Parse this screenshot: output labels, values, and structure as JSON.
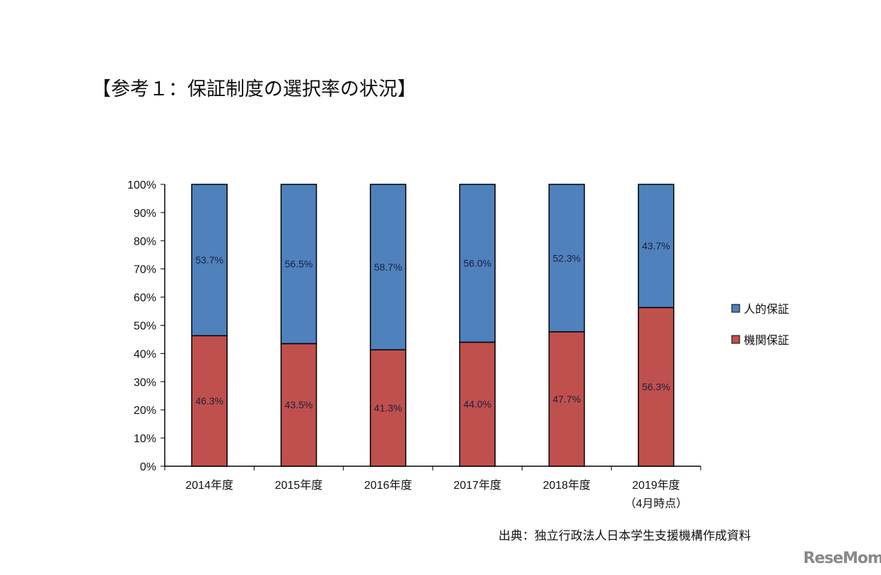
{
  "title": "【参考１：保証制度の選択率の状況】",
  "source": "出典：独立行政法人日本学生支援機構作成資料",
  "logo": "ReseMom",
  "chart_data": {
    "type": "bar",
    "stacked": true,
    "categories": [
      "2014年度",
      "2015年度",
      "2016年度",
      "2017年度",
      "2018年度",
      "2019年度"
    ],
    "category_sublabels": [
      "",
      "",
      "",
      "",
      "",
      "（4月時点）"
    ],
    "series": [
      {
        "name": "機関保証",
        "color": "#C0504D",
        "values": [
          46.3,
          43.5,
          41.3,
          44.0,
          47.7,
          56.3
        ]
      },
      {
        "name": "人的保証",
        "color": "#4F81BD",
        "values": [
          53.7,
          56.5,
          58.7,
          56.0,
          52.3,
          43.7
        ]
      }
    ],
    "ylim": [
      0,
      100
    ],
    "yticks": [
      "0%",
      "10%",
      "20%",
      "30%",
      "40%",
      "50%",
      "60%",
      "70%",
      "80%",
      "90%",
      "100%"
    ],
    "legend_position": "right",
    "legend_order": [
      "人的保証",
      "機関保証"
    ],
    "grid": false
  }
}
